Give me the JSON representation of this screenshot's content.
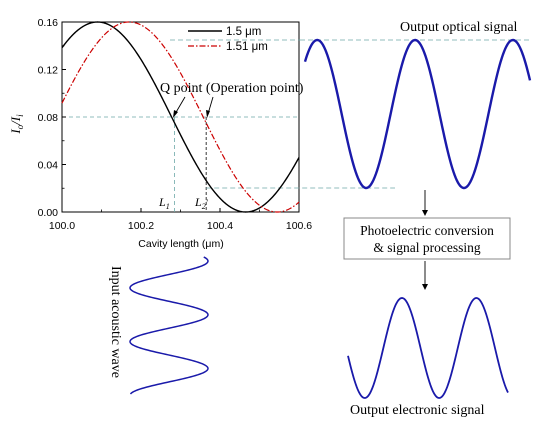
{
  "chart_data": {
    "type": "line",
    "xlabel": "Cavity length (μm)",
    "ylabel_main": "I",
    "ylabel_sub1": "o",
    "ylabel_slash": "/",
    "ylabel_sub2": "i",
    "xlim": [
      100.0,
      100.6
    ],
    "ylim": [
      0.0,
      0.16
    ],
    "x_ticks": [
      "100.0",
      "100.2",
      "100.4",
      "100.6"
    ],
    "y_ticks": [
      "0.00",
      "0.04",
      "0.08",
      "0.12",
      "0.16"
    ],
    "series": [
      {
        "name": "1.5  μm",
        "color": "#000000",
        "dash": "solid",
        "peak_x": 100.09,
        "period": 0.75,
        "mean": 0.08,
        "amplitude": 0.08
      },
      {
        "name": "1.51  μm",
        "color": "#cc0000",
        "dash": "dash-dot",
        "peak_x": 100.17,
        "period": 0.75,
        "mean": 0.08,
        "amplitude": 0.08
      }
    ],
    "q_point_label": "Q point (Operation point)",
    "q_point_x": [
      100.285,
      100.365
    ],
    "q_point_y": 0.08,
    "l1_label": "L",
    "l1_sub": "1",
    "l2_label": "L",
    "l2_sub": "2",
    "l2_prime": "'"
  },
  "labels": {
    "output_optical": "Output optical signal",
    "photo_line1": "Photoelectric conversion",
    "photo_line2": "& signal processing",
    "input_acoustic": "Input acoustic wave",
    "output_electronic": "Output electronic signal"
  },
  "colors": {
    "wave": "#1a1aaa",
    "guide": "#6fa8a8",
    "red": "#cc0000",
    "black": "#000000"
  }
}
